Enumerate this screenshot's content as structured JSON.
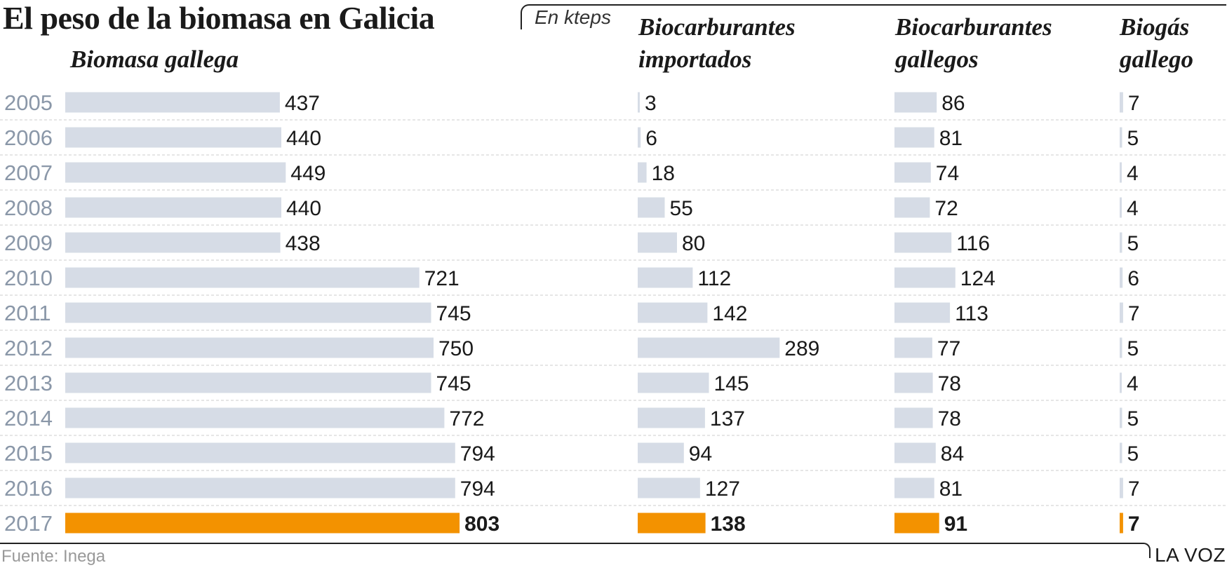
{
  "title": "El peso de la biomasa en Galicia",
  "unit_note": "En kteps",
  "source": "Fuente: Inega",
  "brand": "LA VOZ",
  "colors": {
    "bar": "#d6dce6",
    "highlight": "#f39200",
    "year_label": "#8a97a8",
    "row_divider": "#cccccc"
  },
  "chart_data": {
    "type": "bar",
    "orientation": "horizontal",
    "categories": [
      "2005",
      "2006",
      "2007",
      "2008",
      "2009",
      "2010",
      "2011",
      "2012",
      "2013",
      "2014",
      "2015",
      "2016",
      "2017"
    ],
    "highlight_category": "2017",
    "grid": false,
    "series": [
      {
        "name": "Biomasa gallega",
        "values": [
          437,
          440,
          449,
          440,
          438,
          721,
          745,
          750,
          745,
          772,
          794,
          794,
          803
        ]
      },
      {
        "name": "Biocarburantes importados",
        "values": [
          3,
          6,
          18,
          55,
          80,
          112,
          142,
          289,
          145,
          137,
          94,
          127,
          138
        ]
      },
      {
        "name": "Biocarburantes gallegos",
        "values": [
          86,
          81,
          74,
          72,
          116,
          124,
          113,
          77,
          78,
          78,
          84,
          81,
          91
        ]
      },
      {
        "name": "Biogás gallego",
        "values": [
          7,
          5,
          4,
          4,
          5,
          6,
          7,
          5,
          4,
          5,
          5,
          7,
          7
        ]
      }
    ]
  }
}
